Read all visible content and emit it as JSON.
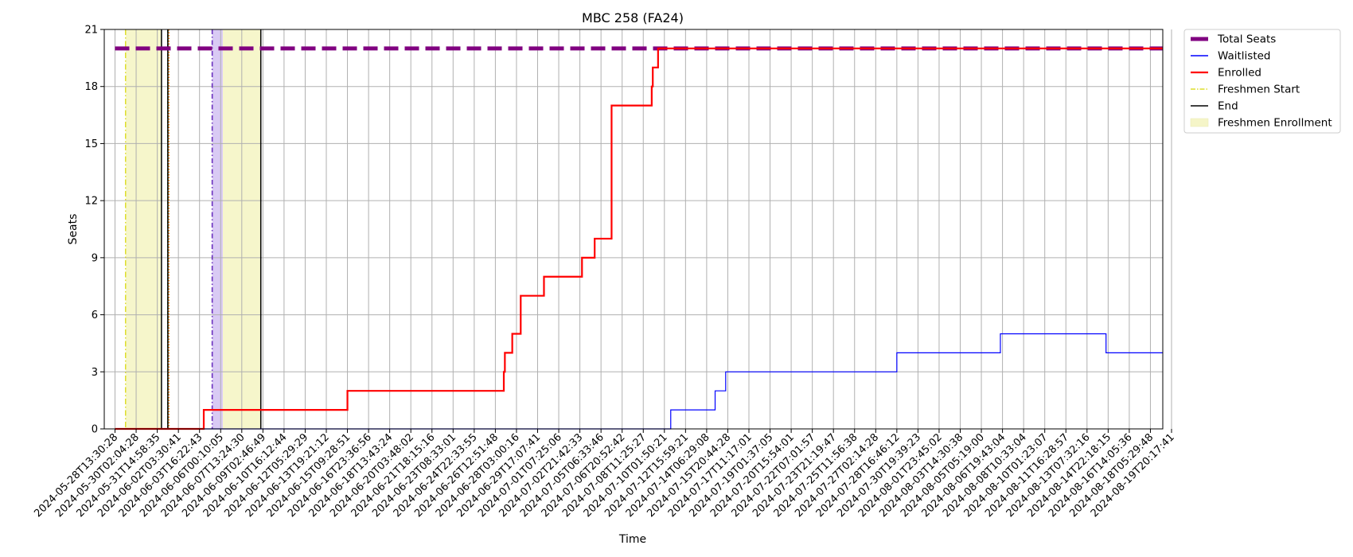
{
  "chart_data": {
    "type": "line",
    "title": "MBC 258 (FA24)",
    "xlabel": "Time",
    "ylabel": "Seats",
    "ylim": [
      0,
      21
    ],
    "yticks": [
      0,
      3,
      6,
      9,
      12,
      15,
      18,
      21
    ],
    "grid": true,
    "legend_position": "outside-top-right",
    "x_ticks": [
      "2024-05-28T13:30:28",
      "2024-05-30T02:04:28",
      "2024-05-31T14:58:35",
      "2024-06-02T03:30:41",
      "2024-06-03T16:22:43",
      "2024-06-06T00:10:05",
      "2024-06-07T13:24:30",
      "2024-06-09T02:46:49",
      "2024-06-10T16:12:44",
      "2024-06-12T05:29:29",
      "2024-06-13T19:21:12",
      "2024-06-15T09:28:51",
      "2024-06-16T23:36:56",
      "2024-06-18T13:43:24",
      "2024-06-20T03:48:02",
      "2024-06-21T18:15:16",
      "2024-06-23T08:33:01",
      "2024-06-24T22:33:55",
      "2024-06-26T12:51:48",
      "2024-06-28T03:00:16",
      "2024-06-29T17:07:41",
      "2024-07-01T07:25:06",
      "2024-07-02T21:42:33",
      "2024-07-05T06:33:46",
      "2024-07-06T20:52:42",
      "2024-07-08T11:25:27",
      "2024-07-10T01:50:21",
      "2024-07-12T15:59:21",
      "2024-07-14T06:29:08",
      "2024-07-15T20:44:28",
      "2024-07-17T11:17:01",
      "2024-07-19T01:37:05",
      "2024-07-20T15:54:01",
      "2024-07-22T07:01:57",
      "2024-07-23T21:19:47",
      "2024-07-25T11:56:38",
      "2024-07-27T02:14:28",
      "2024-07-28T16:46:12",
      "2024-07-30T19:39:23",
      "2024-08-01T23:45:02",
      "2024-08-03T14:30:38",
      "2024-08-05T05:19:00",
      "2024-08-06T19:43:04",
      "2024-08-08T10:33:04",
      "2024-08-10T01:23:07",
      "2024-08-11T16:28:57",
      "2024-08-13T07:32:16",
      "2024-08-14T22:18:15",
      "2024-08-16T14:05:36",
      "2024-08-18T05:29:48",
      "2024-08-19T20:17:41"
    ],
    "series": [
      {
        "name": "Total Seats",
        "color": "#800080",
        "style": "dashed-thick",
        "points": [
          [
            0,
            20
          ],
          [
            50.5,
            20
          ]
        ]
      },
      {
        "name": "Waitlisted",
        "color": "#0000ff",
        "style": "step",
        "points": [
          [
            0,
            0
          ],
          [
            26.3,
            0
          ],
          [
            26.3,
            1
          ],
          [
            28.4,
            1
          ],
          [
            28.4,
            2
          ],
          [
            28.9,
            2
          ],
          [
            28.9,
            3
          ],
          [
            37.0,
            3
          ],
          [
            37.0,
            4
          ],
          [
            41.9,
            4
          ],
          [
            41.9,
            5
          ],
          [
            46.9,
            5
          ],
          [
            46.9,
            4
          ],
          [
            50.5,
            4
          ]
        ]
      },
      {
        "name": "Enrolled",
        "color": "#ff0000",
        "style": "step",
        "points": [
          [
            0,
            0
          ],
          [
            4.2,
            0
          ],
          [
            4.2,
            1
          ],
          [
            11.0,
            1
          ],
          [
            11.0,
            2
          ],
          [
            18.4,
            2
          ],
          [
            18.4,
            3
          ],
          [
            18.45,
            3
          ],
          [
            18.45,
            4
          ],
          [
            18.8,
            4
          ],
          [
            18.8,
            5
          ],
          [
            19.2,
            5
          ],
          [
            19.2,
            7
          ],
          [
            20.3,
            7
          ],
          [
            20.3,
            8
          ],
          [
            22.1,
            8
          ],
          [
            22.1,
            9
          ],
          [
            22.7,
            9
          ],
          [
            22.7,
            10
          ],
          [
            23.5,
            10
          ],
          [
            23.5,
            17
          ],
          [
            25.4,
            17
          ],
          [
            25.4,
            18
          ],
          [
            25.45,
            18
          ],
          [
            25.45,
            19
          ],
          [
            25.7,
            19
          ],
          [
            25.7,
            20
          ],
          [
            50.5,
            20
          ]
        ]
      }
    ],
    "freshmen_enrollment_spans": [
      [
        0.5,
        2.2
      ],
      [
        5.1,
        6.9
      ]
    ],
    "freshmen_start_lines": [
      0.5
    ],
    "end_lines": [
      2.2,
      2.5,
      6.9
    ],
    "annotation_lines": [
      {
        "x": 2.5,
        "color": "#2ca02c",
        "style": "dashed"
      },
      {
        "x": 2.55,
        "color": "#ff7f0e",
        "style": "dotted"
      },
      {
        "x": 4.6,
        "color": "#6a2fbf",
        "style": "dashdot"
      }
    ],
    "annotation_spans": [
      {
        "x0": 4.6,
        "x1": 5.1,
        "color": "#c9b3ef"
      }
    ]
  },
  "legend": {
    "items": [
      {
        "label": "Total Seats",
        "kind": "thick-line",
        "color": "#800080"
      },
      {
        "label": "Waitlisted",
        "kind": "line",
        "color": "#0000ff"
      },
      {
        "label": "Enrolled",
        "kind": "line",
        "color": "#ff0000"
      },
      {
        "label": "Freshmen Start",
        "kind": "dashdot",
        "color": "#d6d600"
      },
      {
        "label": "End",
        "kind": "line",
        "color": "#000000"
      },
      {
        "label": "Freshmen Enrollment",
        "kind": "patch",
        "color": "#f5f5c8"
      }
    ]
  }
}
